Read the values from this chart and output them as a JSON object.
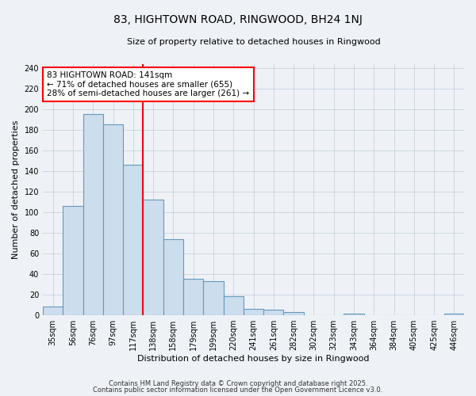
{
  "title": "83, HIGHTOWN ROAD, RINGWOOD, BH24 1NJ",
  "subtitle": "Size of property relative to detached houses in Ringwood",
  "xlabel": "Distribution of detached houses by size in Ringwood",
  "ylabel": "Number of detached properties",
  "bin_labels": [
    "35sqm",
    "56sqm",
    "76sqm",
    "97sqm",
    "117sqm",
    "138sqm",
    "158sqm",
    "179sqm",
    "199sqm",
    "220sqm",
    "241sqm",
    "261sqm",
    "282sqm",
    "302sqm",
    "323sqm",
    "343sqm",
    "364sqm",
    "384sqm",
    "405sqm",
    "425sqm",
    "446sqm"
  ],
  "bar_values": [
    8,
    106,
    195,
    185,
    146,
    112,
    74,
    35,
    33,
    18,
    6,
    5,
    3,
    0,
    0,
    1,
    0,
    0,
    0,
    0,
    1
  ],
  "bar_color": "#ccdded",
  "bar_edge_color": "#6699bb",
  "vline_label_index": 5,
  "vline_color": "red",
  "ylim": [
    0,
    244
  ],
  "yticks": [
    0,
    20,
    40,
    60,
    80,
    100,
    120,
    140,
    160,
    180,
    200,
    220,
    240
  ],
  "annotation_text": "83 HIGHTOWN ROAD: 141sqm\n← 71% of detached houses are smaller (655)\n28% of semi-detached houses are larger (261) →",
  "annotation_box_color": "white",
  "annotation_box_edge": "red",
  "footer_line1": "Contains HM Land Registry data © Crown copyright and database right 2025.",
  "footer_line2": "Contains public sector information licensed under the Open Government Licence v3.0.",
  "bg_color": "#eef2f7",
  "grid_color": "#c0ccd8",
  "title_fontsize": 10,
  "subtitle_fontsize": 8,
  "axis_label_fontsize": 8,
  "tick_fontsize": 7,
  "footer_fontsize": 6,
  "annot_fontsize": 7.5
}
